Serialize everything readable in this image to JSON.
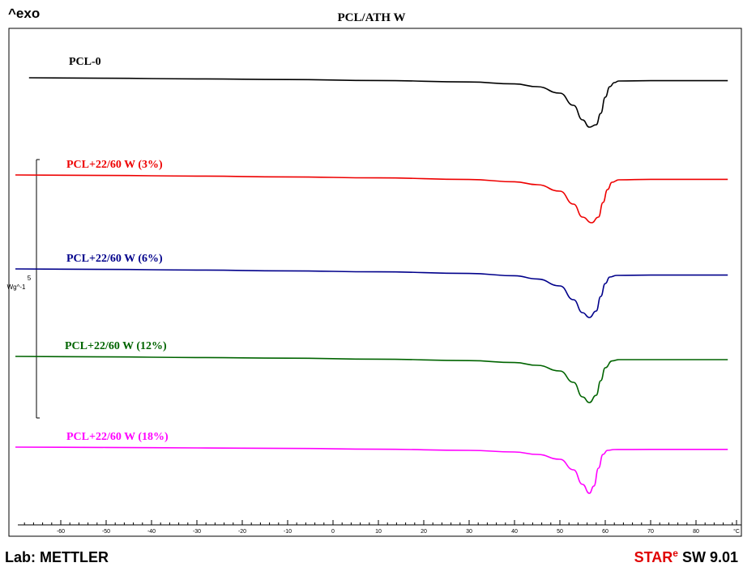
{
  "exo_label": "^exo",
  "title": "PCL/ATH W",
  "footer": {
    "lab": "Lab: METTLER",
    "software_red": "STAR",
    "software_sup": "e",
    "software_rest": " SW 9.01"
  },
  "scale_bar": {
    "value": "5",
    "unit": "Wg^-1"
  },
  "chart_data": {
    "type": "line",
    "title": "PCL/ATH W",
    "xlabel": "°C",
    "ylabel": "^exo",
    "xlim": [
      -70,
      87
    ],
    "x_ticks": [
      -60,
      -50,
      -40,
      -30,
      -20,
      -10,
      0,
      10,
      20,
      30,
      40,
      50,
      60,
      70,
      80
    ],
    "tick_unit_label": "°C",
    "grid": false,
    "series": [
      {
        "name": "PCL-0",
        "color": "#000000",
        "points": [
          [
            -67,
            0
          ],
          [
            -50,
            -0.03
          ],
          [
            -30,
            -0.07
          ],
          [
            -10,
            -0.11
          ],
          [
            10,
            -0.17
          ],
          [
            30,
            -0.26
          ],
          [
            40,
            -0.38
          ],
          [
            45,
            -0.55
          ],
          [
            50,
            -0.95
          ],
          [
            53,
            -1.7
          ],
          [
            55,
            -2.6
          ],
          [
            56.5,
            -3.05
          ],
          [
            58,
            -2.9
          ],
          [
            59,
            -2.2
          ],
          [
            60,
            -1.2
          ],
          [
            61,
            -0.55
          ],
          [
            62,
            -0.3
          ],
          [
            63,
            -0.2
          ],
          [
            70,
            -0.18
          ],
          [
            87,
            -0.18
          ]
        ]
      },
      {
        "name": "PCL+22/60 W (3%)",
        "color": "#ee0000",
        "points": [
          [
            -70,
            0
          ],
          [
            -50,
            -0.03
          ],
          [
            -30,
            -0.07
          ],
          [
            -10,
            -0.12
          ],
          [
            10,
            -0.18
          ],
          [
            30,
            -0.28
          ],
          [
            40,
            -0.42
          ],
          [
            45,
            -0.6
          ],
          [
            50,
            -1.0
          ],
          [
            53,
            -1.8
          ],
          [
            55,
            -2.6
          ],
          [
            57,
            -2.95
          ],
          [
            58.5,
            -2.6
          ],
          [
            59.5,
            -1.7
          ],
          [
            60.5,
            -0.9
          ],
          [
            61.5,
            -0.45
          ],
          [
            63,
            -0.3
          ],
          [
            70,
            -0.27
          ],
          [
            87,
            -0.27
          ]
        ]
      },
      {
        "name": "PCL+22/60 W (6%)",
        "color": "#00008b",
        "points": [
          [
            -70,
            0
          ],
          [
            -50,
            -0.03
          ],
          [
            -30,
            -0.07
          ],
          [
            -10,
            -0.12
          ],
          [
            10,
            -0.18
          ],
          [
            30,
            -0.28
          ],
          [
            40,
            -0.42
          ],
          [
            45,
            -0.62
          ],
          [
            50,
            -1.05
          ],
          [
            53,
            -1.9
          ],
          [
            55,
            -2.7
          ],
          [
            56.5,
            -3.0
          ],
          [
            58,
            -2.6
          ],
          [
            59,
            -1.7
          ],
          [
            60,
            -0.9
          ],
          [
            61,
            -0.5
          ],
          [
            62.5,
            -0.4
          ],
          [
            70,
            -0.38
          ],
          [
            87,
            -0.38
          ]
        ]
      },
      {
        "name": "PCL+22/60 W (12%)",
        "color": "#006400",
        "points": [
          [
            -70,
            0
          ],
          [
            -50,
            -0.03
          ],
          [
            -30,
            -0.07
          ],
          [
            -10,
            -0.11
          ],
          [
            10,
            -0.17
          ],
          [
            30,
            -0.26
          ],
          [
            40,
            -0.38
          ],
          [
            45,
            -0.55
          ],
          [
            50,
            -0.9
          ],
          [
            53,
            -1.6
          ],
          [
            55,
            -2.5
          ],
          [
            56.5,
            -2.85
          ],
          [
            58,
            -2.4
          ],
          [
            59,
            -1.5
          ],
          [
            60,
            -0.7
          ],
          [
            61.5,
            -0.28
          ],
          [
            63,
            -0.2
          ],
          [
            70,
            -0.2
          ],
          [
            87,
            -0.2
          ]
        ]
      },
      {
        "name": "PCL+22/60 W (18%)",
        "color": "#ff00ff",
        "points": [
          [
            -70,
            0
          ],
          [
            -50,
            -0.02
          ],
          [
            -30,
            -0.05
          ],
          [
            -10,
            -0.08
          ],
          [
            10,
            -0.13
          ],
          [
            30,
            -0.2
          ],
          [
            40,
            -0.3
          ],
          [
            45,
            -0.45
          ],
          [
            50,
            -0.75
          ],
          [
            53,
            -1.4
          ],
          [
            55,
            -2.3
          ],
          [
            56.5,
            -2.85
          ],
          [
            57.5,
            -2.4
          ],
          [
            58.5,
            -1.3
          ],
          [
            59.5,
            -0.45
          ],
          [
            60.5,
            -0.2
          ],
          [
            62,
            -0.15
          ],
          [
            70,
            -0.14
          ],
          [
            87,
            -0.14
          ]
        ]
      }
    ]
  }
}
